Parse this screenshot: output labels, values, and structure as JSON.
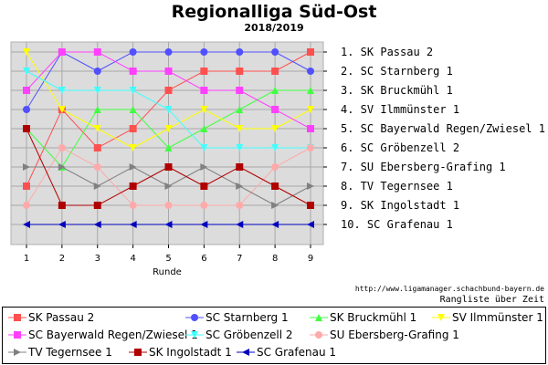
{
  "chart_data": {
    "type": "line",
    "title": "Regionalliga Süd-Ost",
    "subtitle": "2018/2019",
    "xlabel": "Runde",
    "x": [
      1,
      2,
      3,
      4,
      5,
      6,
      7,
      8,
      9
    ],
    "ylim": [
      1,
      10
    ],
    "y_inverted": true,
    "grid": true,
    "rank_labels": [
      "1.  SK Passau 2",
      "2.  SC Starnberg 1",
      "3.  SK Bruckmühl 1",
      "4.  SV Ilmmünster 1",
      "5.  SC Bayerwald Regen/Zwiesel 1",
      "6.  SC Gröbenzell 2",
      "7.  SU Ebersberg-Grafing 1",
      "8.  TV Tegernsee 1",
      "9.  SK Ingolstadt 1",
      "10. SC Grafenau 1"
    ],
    "series": [
      {
        "name": "SK Passau 2",
        "color": "#ff5050",
        "marker": "square",
        "values": [
          8,
          4,
          6,
          5,
          3,
          2,
          2,
          2,
          1
        ]
      },
      {
        "name": "SC Starnberg 1",
        "color": "#5050ff",
        "marker": "circle",
        "values": [
          4,
          1,
          2,
          1,
          1,
          1,
          1,
          1,
          2
        ]
      },
      {
        "name": "SK Bruckmühl 1",
        "color": "#40ff40",
        "marker": "triangle-up",
        "values": [
          5,
          7,
          4,
          4,
          6,
          5,
          4,
          3,
          3
        ]
      },
      {
        "name": "SV Ilmmünster 1",
        "color": "#ffff00",
        "marker": "triangle-down",
        "values": [
          1,
          4,
          5,
          6,
          5,
          4,
          5,
          5,
          4
        ]
      },
      {
        "name": "SC Bayerwald Regen/Zwiesel 1",
        "color": "#ff40ff",
        "marker": "square",
        "values": [
          3,
          1,
          1,
          2,
          2,
          3,
          3,
          4,
          5
        ]
      },
      {
        "name": "SC Gröbenzell 2",
        "color": "#40ffff",
        "marker": "triangle-down",
        "values": [
          2,
          3,
          3,
          3,
          4,
          6,
          6,
          6,
          6
        ]
      },
      {
        "name": "SU Ebersberg-Grafing 1",
        "color": "#ffaaaa",
        "marker": "circle",
        "values": [
          9,
          6,
          7,
          9,
          9,
          9,
          9,
          7,
          6
        ]
      },
      {
        "name": "TV Tegernsee 1",
        "color": "#808080",
        "marker": "triangle-right",
        "values": [
          7,
          7,
          8,
          7,
          8,
          7,
          8,
          9,
          8
        ]
      },
      {
        "name": "SK Ingolstadt 1",
        "color": "#b00000",
        "marker": "square",
        "values": [
          5,
          9,
          9,
          8,
          7,
          8,
          7,
          8,
          9
        ]
      },
      {
        "name": "SC Grafenau 1",
        "color": "#0000c0",
        "marker": "triangle-left",
        "values": [
          10,
          10,
          10,
          10,
          10,
          10,
          10,
          10,
          10
        ]
      }
    ]
  },
  "footer": {
    "source": "http://www.ligamanager.schachbund-bayern.de",
    "caption": "Rangliste über Zeit"
  }
}
